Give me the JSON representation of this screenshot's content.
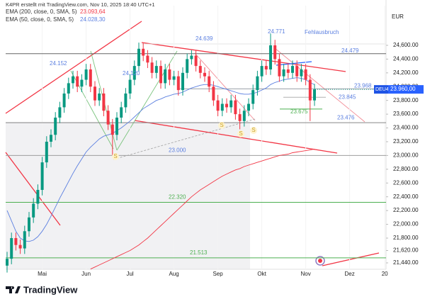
{
  "chart_data": {
    "type": "candlestick",
    "header": "K4PR erstellt mit TradingView.com, Nov 10, 2025 18:40 UTC+1",
    "currency": "EUR",
    "logo": "TradingView",
    "categories": [
      null,
      null,
      null,
      null,
      null,
      null,
      null,
      null,
      "Mai",
      null,
      null,
      null,
      null,
      null,
      null,
      null,
      null,
      null,
      "Jun",
      null,
      null,
      null,
      null,
      null,
      null,
      null,
      null,
      null,
      "Jul",
      null,
      null,
      null,
      null,
      null,
      null,
      null,
      null,
      null,
      "Aug",
      null,
      null,
      null,
      null,
      null,
      null,
      null,
      null,
      null,
      "Sep",
      null,
      null,
      null,
      null,
      null,
      null,
      null,
      null,
      null,
      "Okt",
      null,
      null,
      null,
      null,
      null,
      null,
      null,
      null,
      null,
      "Nov",
      null,
      null,
      null,
      null,
      null,
      null,
      null,
      null,
      null,
      "Dez",
      null,
      null,
      null,
      null,
      null,
      null,
      null,
      "20"
    ],
    "open": [
      21400,
      21500,
      21800,
      21700,
      21650,
      21900,
      22100,
      22300,
      22500,
      22900,
      23200,
      23300,
      23550,
      23700,
      23900,
      24050,
      24150,
      24000,
      24100,
      24250,
      24000,
      23800,
      23900,
      23650,
      23450,
      23300,
      23550,
      23700,
      23900,
      24100,
      24300,
      24550,
      24450,
      24350,
      24200,
      24300,
      24050,
      24250,
      24100,
      24150,
      23950,
      24200,
      24400,
      24450,
      24300,
      24200,
      24150,
      24000,
      23800,
      23650,
      23750,
      23700,
      23800,
      23600,
      23500,
      23650,
      23750,
      23950,
      24150,
      24300,
      24250,
      24600,
      24400,
      24150,
      24250,
      24200,
      24300,
      24150,
      24250,
      24100,
      23800,
      null,
      null,
      null,
      null,
      null,
      null,
      null,
      null,
      null,
      null,
      null,
      null,
      null,
      null,
      null,
      null
    ],
    "high": [
      21600,
      21880,
      21880,
      21780,
      21980,
      22180,
      22380,
      22580,
      22980,
      23280,
      23380,
      23630,
      23780,
      23980,
      24130,
      24230,
      24230,
      24180,
      24330,
      24330,
      24080,
      23980,
      23980,
      23730,
      23530,
      23630,
      23780,
      23980,
      24180,
      24380,
      24639,
      24630,
      24530,
      24430,
      24380,
      24380,
      24330,
      24330,
      24230,
      24230,
      24280,
      24480,
      24530,
      24530,
      24380,
      24280,
      24230,
      24080,
      23880,
      23830,
      23830,
      23880,
      23880,
      23680,
      23730,
      23830,
      24030,
      24230,
      24380,
      24380,
      24771,
      24680,
      24480,
      24330,
      24330,
      24380,
      24380,
      24330,
      24330,
      24180,
      24040,
      null,
      null,
      null,
      null,
      null,
      null,
      null,
      null,
      null,
      null,
      null,
      null,
      null,
      null,
      null,
      null
    ],
    "low": [
      21300,
      21420,
      21620,
      21570,
      21570,
      21820,
      22020,
      22220,
      22420,
      22820,
      23120,
      23220,
      23470,
      23620,
      23820,
      23970,
      23920,
      23920,
      24020,
      23920,
      23720,
      23720,
      23570,
      23370,
      23000,
      23220,
      23470,
      23620,
      23820,
      24020,
      24220,
      24370,
      24270,
      24120,
      24120,
      23970,
      23970,
      24020,
      24020,
      23870,
      23870,
      24120,
      24320,
      24220,
      24120,
      24070,
      23920,
      23720,
      23570,
      23570,
      23620,
      23620,
      23520,
      23380,
      23420,
      23570,
      23670,
      23870,
      24070,
      24170,
      24170,
      24320,
      24070,
      24070,
      24120,
      24120,
      24070,
      24070,
      24020,
      23500,
      23720,
      null,
      null,
      null,
      null,
      null,
      null,
      null,
      null,
      null,
      null,
      null,
      null,
      null,
      null,
      null,
      null
    ],
    "close": [
      21500,
      21800,
      21700,
      21650,
      21900,
      22100,
      22300,
      22500,
      22900,
      23200,
      23300,
      23550,
      23700,
      23900,
      24050,
      24150,
      24000,
      24100,
      24250,
      24000,
      23800,
      23900,
      23650,
      23450,
      23300,
      23550,
      23700,
      23900,
      24100,
      24300,
      24550,
      24450,
      24350,
      24200,
      24300,
      24050,
      24250,
      24100,
      24150,
      23950,
      24200,
      24400,
      24450,
      24300,
      24200,
      24150,
      24000,
      23800,
      23650,
      23750,
      23700,
      23800,
      23600,
      23500,
      23650,
      23750,
      23950,
      24150,
      24300,
      24250,
      24600,
      24400,
      24150,
      24250,
      24200,
      24300,
      24150,
      24250,
      24100,
      23800,
      23960,
      null,
      null,
      null,
      null,
      null,
      null,
      null,
      null,
      null,
      null,
      null,
      null,
      null,
      null,
      null,
      null
    ],
    "up_color": "#089981",
    "down_color": "#f23645",
    "series": [
      {
        "name": "EMA (200, close, 0, SMA, 5)",
        "value_label": "23.093,64",
        "color": "#f23645",
        "values": [
          null,
          null,
          null,
          null,
          null,
          null,
          null,
          null,
          null,
          null,
          null,
          null,
          null,
          null,
          null,
          null,
          null,
          null,
          null,
          21350,
          21380,
          21410,
          21440,
          21470,
          21500,
          21530,
          21560,
          21590,
          21620,
          21660,
          21700,
          21750,
          21800,
          21860,
          21920,
          21980,
          22040,
          22100,
          22160,
          22220,
          22280,
          22340,
          22400,
          22450,
          22500,
          22540,
          22580,
          22620,
          22660,
          22700,
          22730,
          22760,
          22790,
          22810,
          22840,
          22860,
          22880,
          22900,
          22920,
          22940,
          22960,
          22980,
          23000,
          23010,
          23020,
          23040,
          23050,
          23060,
          23070,
          23080,
          23093.64,
          null,
          null,
          null,
          null,
          null,
          null,
          null,
          null,
          null,
          null,
          null,
          null,
          null,
          null,
          null,
          null
        ]
      },
      {
        "name": "EMA (50, close, 0, SMA, 5)",
        "value_label": "24.028,30",
        "color": "#5b7fe0",
        "values": [
          22200,
          22050,
          21900,
          21800,
          21760,
          21750,
          21770,
          21820,
          21900,
          22000,
          22120,
          22250,
          22380,
          22500,
          22620,
          22740,
          22850,
          22950,
          23050,
          23120,
          23180,
          23240,
          23280,
          23300,
          23320,
          23360,
          23400,
          23450,
          23500,
          23560,
          23620,
          23680,
          23720,
          23760,
          23800,
          23820,
          23850,
          23870,
          23890,
          23900,
          23920,
          23950,
          23980,
          24000,
          24020,
          24030,
          24030,
          24020,
          24000,
          23980,
          23960,
          23940,
          23920,
          23900,
          23890,
          23890,
          23900,
          23920,
          23950,
          23980,
          24030,
          24060,
          24080,
          24100,
          24110,
          24120,
          24130,
          24120,
          24100,
          24060,
          24028.3,
          null,
          null,
          null,
          null,
          null,
          null,
          null,
          null,
          null,
          null,
          null,
          null,
          null,
          null,
          null,
          null
        ]
      }
    ],
    "last_price": {
      "symbol": "DEU40",
      "value": 23960,
      "label": "23.960,00"
    },
    "levels": [
      {
        "value": 24479,
        "label": "24.479",
        "color": "#666666"
      },
      {
        "value": 23968,
        "label": "23.968",
        "color": "#9aa0a8"
      },
      {
        "value": 23845,
        "label": "23.845",
        "color": "#b0b0b0"
      },
      {
        "value": 23675,
        "label": "23.675",
        "color": "#4caf50"
      },
      {
        "value": 23476,
        "label": "23.476",
        "color": "#888888"
      },
      {
        "value": 23000,
        "label": "23.000",
        "color": "#9e9e9e"
      },
      {
        "value": 22320,
        "label": "22.320",
        "color": "#4caf50"
      },
      {
        "value": 21513,
        "label": "21.513",
        "color": "#4caf50"
      }
    ],
    "annotations": [
      {
        "label": "24.152"
      },
      {
        "label": "24.120"
      },
      {
        "label": "24.639"
      },
      {
        "label": "24.771"
      },
      {
        "label": "Fehlausbruch"
      },
      {
        "label": "S"
      },
      {
        "label": "S"
      },
      {
        "label": "S"
      },
      {
        "label": "S"
      }
    ],
    "ylim": [
      21347,
      25176
    ],
    "yticks": [
      {
        "value": 24600,
        "label": "24,600.00"
      },
      {
        "value": 24400,
        "label": "24,400.00"
      },
      {
        "value": 24200,
        "label": "24,200.00"
      },
      {
        "value": 24000,
        "label": "24,000.00"
      },
      {
        "value": 23800,
        "label": "23,800.00"
      },
      {
        "value": 23600,
        "label": "23,600.00"
      },
      {
        "value": 23400,
        "label": "23,400.00"
      },
      {
        "value": 23200,
        "label": "23,200.00"
      },
      {
        "value": 23000,
        "label": "23,000.00"
      },
      {
        "value": 22800,
        "label": "22,800.00"
      },
      {
        "value": 22600,
        "label": "22,600.00"
      },
      {
        "value": 22400,
        "label": "22,400.00"
      },
      {
        "value": 22200,
        "label": "22,200.00"
      },
      {
        "value": 22000,
        "label": "22,000.00"
      },
      {
        "value": 21800,
        "label": "21,800.00"
      },
      {
        "value": 21620,
        "label": "21,620.00"
      },
      {
        "value": 21440,
        "label": "21,440.00"
      }
    ]
  }
}
